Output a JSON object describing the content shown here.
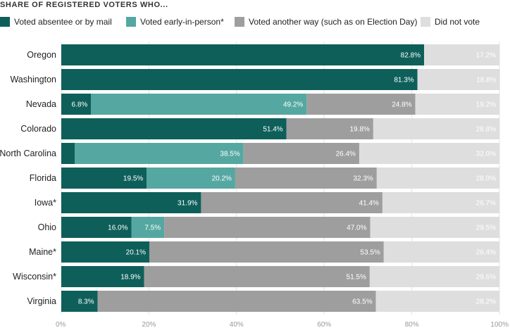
{
  "chart_data": {
    "type": "bar",
    "orientation": "horizontal",
    "stacked": true,
    "title": "SHARE OF REGISTERED VOTERS WHO...",
    "legend_placement": "top",
    "grid": true,
    "xlim": [
      0,
      100
    ],
    "x_ticks": [
      "0%",
      "20%",
      "40%",
      "60%",
      "80%",
      "100%"
    ],
    "categories": [
      "Oregon",
      "Washington",
      "Nevada",
      "Colorado",
      "North Carolina",
      "Florida",
      "Iowa*",
      "Ohio",
      "Maine*",
      "Wisconsin*",
      "Virginia"
    ],
    "series": [
      {
        "name": "Voted absentee or by mail",
        "color": "#0e5f5a",
        "label_color": "#ffffff",
        "values": [
          82.8,
          81.3,
          6.8,
          51.4,
          3.1,
          19.5,
          31.9,
          16.0,
          20.1,
          18.9,
          8.3
        ],
        "labels": [
          "82.8%",
          "81.3%",
          "6.8%",
          "51.4%",
          "",
          "19.5%",
          "31.9%",
          "16.0%",
          "20.1%",
          "18.9%",
          "8.3%"
        ]
      },
      {
        "name": "Voted early-in-person*",
        "color": "#55a8a1",
        "label_color": "#ffffff",
        "values": [
          0,
          0,
          49.2,
          0,
          38.5,
          20.2,
          0,
          7.5,
          0,
          0,
          0
        ],
        "labels": [
          "",
          "",
          "49.2%",
          "",
          "38.5%",
          "20.2%",
          "",
          "7.5%",
          "",
          "",
          ""
        ]
      },
      {
        "name": "Voted another way (such as on Election Day)",
        "color": "#9e9e9e",
        "label_color": "#ffffff",
        "values": [
          0,
          0,
          24.8,
          19.8,
          26.4,
          32.3,
          41.4,
          47.0,
          53.5,
          51.5,
          63.5
        ],
        "labels": [
          "",
          "",
          "24.8%",
          "19.8%",
          "26.4%",
          "32.3%",
          "41.4%",
          "47.0%",
          "53.5%",
          "51.5%",
          "63.5%"
        ]
      },
      {
        "name": "Did not vote",
        "color": "#dedede",
        "label_color": "#ffffff",
        "values": [
          17.2,
          18.8,
          19.2,
          28.8,
          32.0,
          28.0,
          26.7,
          29.5,
          26.4,
          29.6,
          28.2
        ],
        "labels": [
          "17.2%",
          "18.8%",
          "19.2%",
          "28.8%",
          "32.0%",
          "28.0%",
          "26.7%",
          "29.5%",
          "26.4%",
          "29.6%",
          "28.2%"
        ]
      }
    ]
  }
}
